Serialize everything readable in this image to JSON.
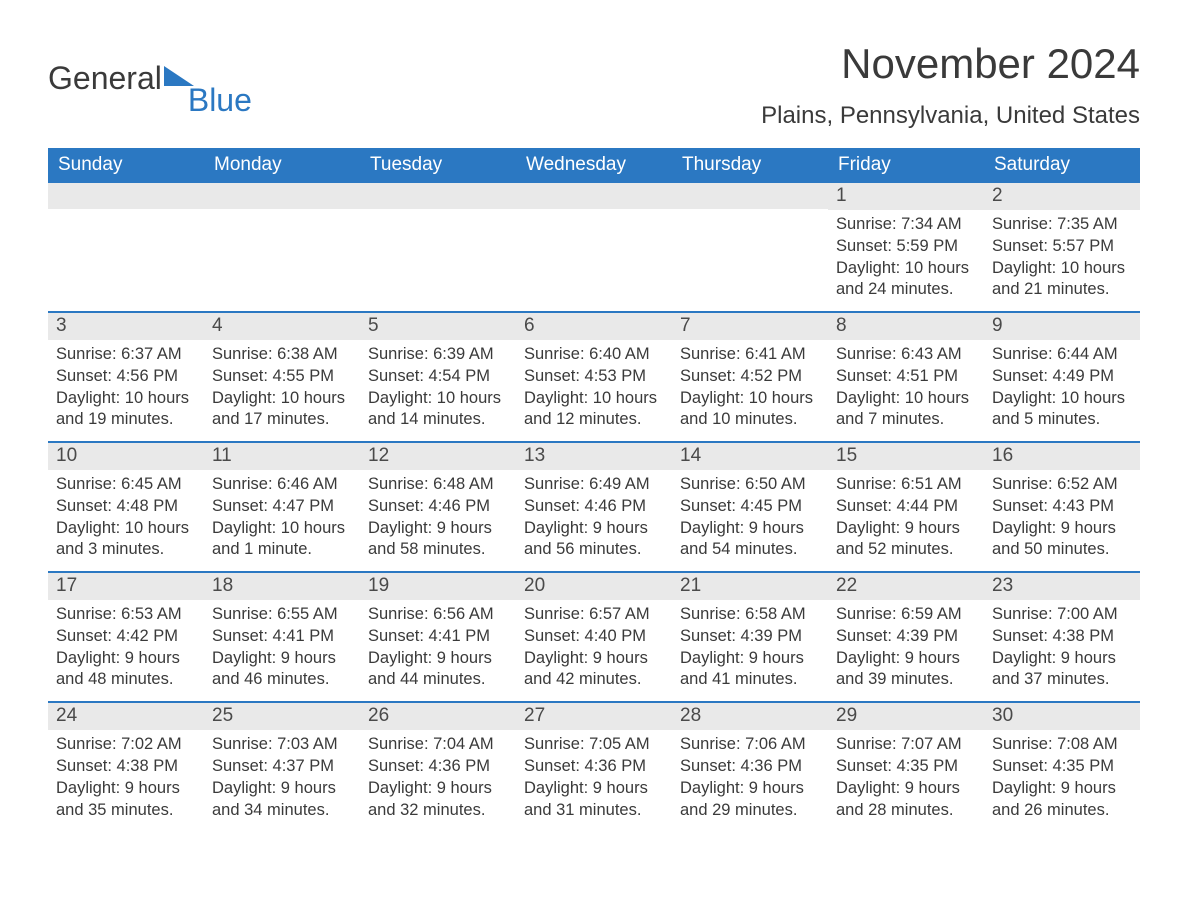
{
  "brand": {
    "part1": "General",
    "part2": "Blue",
    "triangle_color": "#2b78c2"
  },
  "title": "November 2024",
  "subtitle": "Plains, Pennsylvania, United States",
  "colors": {
    "header_bg": "#2b78c2",
    "header_text": "#ffffff",
    "daynum_bg": "#e9e9e9",
    "text": "#3a3a3a",
    "week_border": "#2b78c2",
    "page_bg": "#ffffff"
  },
  "layout": {
    "columns": 7,
    "weeks": 5,
    "title_fontsize": 42,
    "subtitle_fontsize": 24,
    "header_fontsize": 19,
    "daynum_fontsize": 19,
    "body_fontsize": 16.5
  },
  "weekdays": [
    "Sunday",
    "Monday",
    "Tuesday",
    "Wednesday",
    "Thursday",
    "Friday",
    "Saturday"
  ],
  "weeks": [
    [
      null,
      null,
      null,
      null,
      null,
      {
        "n": "1",
        "sunrise": "7:34 AM",
        "sunset": "5:59 PM",
        "day_h": "10",
        "day_m": "24"
      },
      {
        "n": "2",
        "sunrise": "7:35 AM",
        "sunset": "5:57 PM",
        "day_h": "10",
        "day_m": "21"
      }
    ],
    [
      {
        "n": "3",
        "sunrise": "6:37 AM",
        "sunset": "4:56 PM",
        "day_h": "10",
        "day_m": "19"
      },
      {
        "n": "4",
        "sunrise": "6:38 AM",
        "sunset": "4:55 PM",
        "day_h": "10",
        "day_m": "17"
      },
      {
        "n": "5",
        "sunrise": "6:39 AM",
        "sunset": "4:54 PM",
        "day_h": "10",
        "day_m": "14"
      },
      {
        "n": "6",
        "sunrise": "6:40 AM",
        "sunset": "4:53 PM",
        "day_h": "10",
        "day_m": "12"
      },
      {
        "n": "7",
        "sunrise": "6:41 AM",
        "sunset": "4:52 PM",
        "day_h": "10",
        "day_m": "10"
      },
      {
        "n": "8",
        "sunrise": "6:43 AM",
        "sunset": "4:51 PM",
        "day_h": "10",
        "day_m": "7"
      },
      {
        "n": "9",
        "sunrise": "6:44 AM",
        "sunset": "4:49 PM",
        "day_h": "10",
        "day_m": "5"
      }
    ],
    [
      {
        "n": "10",
        "sunrise": "6:45 AM",
        "sunset": "4:48 PM",
        "day_h": "10",
        "day_m": "3"
      },
      {
        "n": "11",
        "sunrise": "6:46 AM",
        "sunset": "4:47 PM",
        "day_h": "10",
        "day_m": "1",
        "m_word": "minute"
      },
      {
        "n": "12",
        "sunrise": "6:48 AM",
        "sunset": "4:46 PM",
        "day_h": "9",
        "day_m": "58"
      },
      {
        "n": "13",
        "sunrise": "6:49 AM",
        "sunset": "4:46 PM",
        "day_h": "9",
        "day_m": "56"
      },
      {
        "n": "14",
        "sunrise": "6:50 AM",
        "sunset": "4:45 PM",
        "day_h": "9",
        "day_m": "54"
      },
      {
        "n": "15",
        "sunrise": "6:51 AM",
        "sunset": "4:44 PM",
        "day_h": "9",
        "day_m": "52"
      },
      {
        "n": "16",
        "sunrise": "6:52 AM",
        "sunset": "4:43 PM",
        "day_h": "9",
        "day_m": "50"
      }
    ],
    [
      {
        "n": "17",
        "sunrise": "6:53 AM",
        "sunset": "4:42 PM",
        "day_h": "9",
        "day_m": "48"
      },
      {
        "n": "18",
        "sunrise": "6:55 AM",
        "sunset": "4:41 PM",
        "day_h": "9",
        "day_m": "46"
      },
      {
        "n": "19",
        "sunrise": "6:56 AM",
        "sunset": "4:41 PM",
        "day_h": "9",
        "day_m": "44"
      },
      {
        "n": "20",
        "sunrise": "6:57 AM",
        "sunset": "4:40 PM",
        "day_h": "9",
        "day_m": "42"
      },
      {
        "n": "21",
        "sunrise": "6:58 AM",
        "sunset": "4:39 PM",
        "day_h": "9",
        "day_m": "41"
      },
      {
        "n": "22",
        "sunrise": "6:59 AM",
        "sunset": "4:39 PM",
        "day_h": "9",
        "day_m": "39"
      },
      {
        "n": "23",
        "sunrise": "7:00 AM",
        "sunset": "4:38 PM",
        "day_h": "9",
        "day_m": "37"
      }
    ],
    [
      {
        "n": "24",
        "sunrise": "7:02 AM",
        "sunset": "4:38 PM",
        "day_h": "9",
        "day_m": "35"
      },
      {
        "n": "25",
        "sunrise": "7:03 AM",
        "sunset": "4:37 PM",
        "day_h": "9",
        "day_m": "34"
      },
      {
        "n": "26",
        "sunrise": "7:04 AM",
        "sunset": "4:36 PM",
        "day_h": "9",
        "day_m": "32"
      },
      {
        "n": "27",
        "sunrise": "7:05 AM",
        "sunset": "4:36 PM",
        "day_h": "9",
        "day_m": "31"
      },
      {
        "n": "28",
        "sunrise": "7:06 AM",
        "sunset": "4:36 PM",
        "day_h": "9",
        "day_m": "29"
      },
      {
        "n": "29",
        "sunrise": "7:07 AM",
        "sunset": "4:35 PM",
        "day_h": "9",
        "day_m": "28"
      },
      {
        "n": "30",
        "sunrise": "7:08 AM",
        "sunset": "4:35 PM",
        "day_h": "9",
        "day_m": "26"
      }
    ]
  ],
  "labels": {
    "sunrise": "Sunrise: ",
    "sunset": "Sunset: ",
    "daylight_pre": "Daylight: ",
    "hours_word": " hours and ",
    "minutes_word": " minutes.",
    "minute_word_singular": " minute."
  }
}
